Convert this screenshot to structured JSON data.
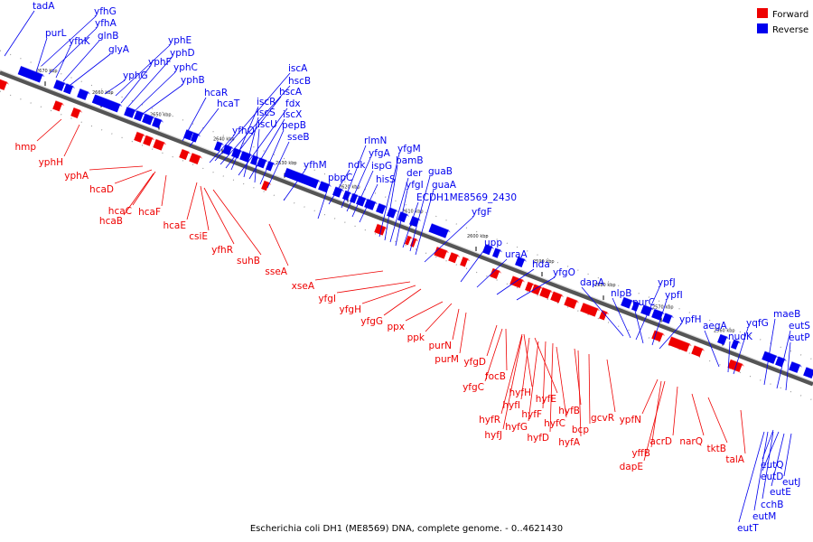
{
  "footer": "Escherichia coli DH1 (ME8569) DNA, complete genome. - 0..4621430",
  "legend": {
    "forward": "Forward",
    "reverse": "Reverse",
    "forward_color": "#ee0000",
    "reverse_color": "#0000ee"
  },
  "ticks": [
    "2670 kbp",
    "2660 kbp",
    "2650 kbp",
    "2640 kbp",
    "2630 kbp",
    "2620 kbp",
    "2610 kbp",
    "2600 kbp",
    "2590 kbp",
    "2580 kbp",
    "2570 kbp",
    "2560 kbp"
  ],
  "reverse_genes": [
    "tadA",
    "yfhG",
    "purL",
    "yfhA",
    "yfhK",
    "glnB",
    "glyA",
    "yphE",
    "yphG",
    "yphF",
    "yphD",
    "yphC",
    "yphB",
    "hcaR",
    "hcaT",
    "iscA",
    "hscB",
    "hscA",
    "iscR",
    "fdx",
    "iscS",
    "iscX",
    "iscU",
    "pepB",
    "yfhQ",
    "sseB",
    "rlmN",
    "yfgM",
    "yfhM",
    "yfgA",
    "ndk",
    "bamB",
    "ispG",
    "pbpC",
    "der",
    "hisS",
    "guaB",
    "yfgI",
    "guaA",
    "ECDH1ME8569_2430",
    "yfgF",
    "upp",
    "uraA",
    "hda",
    "yfgO",
    "dapA",
    "ypfJ",
    "nlpB",
    "purC",
    "ypfI",
    "ypfH",
    "aegA",
    "nudK",
    "yqfG",
    "maeB",
    "eutS",
    "eutP",
    "eutQ",
    "eutD",
    "eutJ",
    "eutE",
    "cchB",
    "eutM",
    "eutT"
  ],
  "forward_genes": [
    "hmp",
    "yphH",
    "yphA",
    "hcaD",
    "hcaC",
    "hcaF",
    "hcaB",
    "hcaE",
    "csiE",
    "yfhR",
    "suhB",
    "sseA",
    "xseA",
    "yfgI",
    "yfgH",
    "yfgG",
    "ppx",
    "ppk",
    "purN",
    "purM",
    "yfgD",
    "focB",
    "yfgC",
    "hyfH",
    "hyfI",
    "hyfE",
    "hyfR",
    "hyfG",
    "hyfF",
    "hyfJ",
    "hyfD",
    "hyfC",
    "hyfB",
    "hyfA",
    "bcp",
    "gcvR",
    "ypfN",
    "yffB",
    "acrD",
    "dapE",
    "narQ",
    "tktB",
    "talA"
  ]
}
